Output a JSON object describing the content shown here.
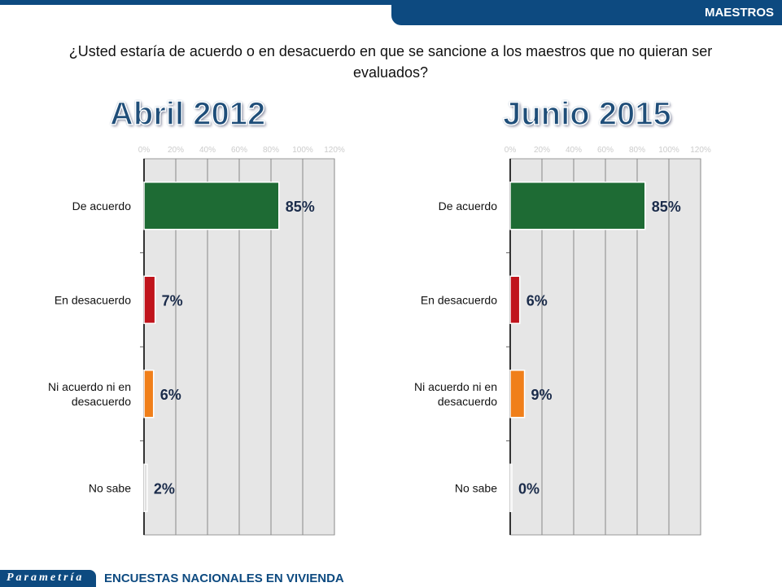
{
  "header": {
    "section": "MAESTROS"
  },
  "question": "¿Usted estaría de acuerdo o en desacuerdo en que se sancione a los maestros que no quieran ser evaluados?",
  "footer": {
    "logo": "Parametría",
    "text": "ENCUESTAS NACIONALES  EN VIVIENDA"
  },
  "chart_data": [
    {
      "type": "bar",
      "orientation": "horizontal",
      "title": "Abril 2012",
      "categories": [
        "De acuerdo",
        "En desacuerdo",
        "Ni acuerdo ni en desacuerdo",
        "No sabe"
      ],
      "values": [
        85,
        7,
        6,
        2
      ],
      "labels": [
        "85%",
        "7%",
        "6%",
        "2%"
      ],
      "colors": [
        "#1e6b34",
        "#c0141c",
        "#f07f1a",
        "#e0e0e0"
      ],
      "xlim": [
        0,
        120
      ],
      "xticks": [
        "0%",
        "20%",
        "40%",
        "60%",
        "80%",
        "100%",
        "120%"
      ],
      "grid": true
    },
    {
      "type": "bar",
      "orientation": "horizontal",
      "title": "Junio 2015",
      "categories": [
        "De acuerdo",
        "En desacuerdo",
        "Ni acuerdo ni en desacuerdo",
        "No sabe"
      ],
      "values": [
        85,
        6,
        9,
        0
      ],
      "labels": [
        "85%",
        "6%",
        "9%",
        "0%"
      ],
      "colors": [
        "#1e6b34",
        "#c0141c",
        "#f07f1a",
        "#e0e0e0"
      ],
      "xlim": [
        0,
        120
      ],
      "xticks": [
        "0%",
        "20%",
        "40%",
        "60%",
        "80%",
        "100%",
        "120%"
      ],
      "grid": true
    }
  ]
}
